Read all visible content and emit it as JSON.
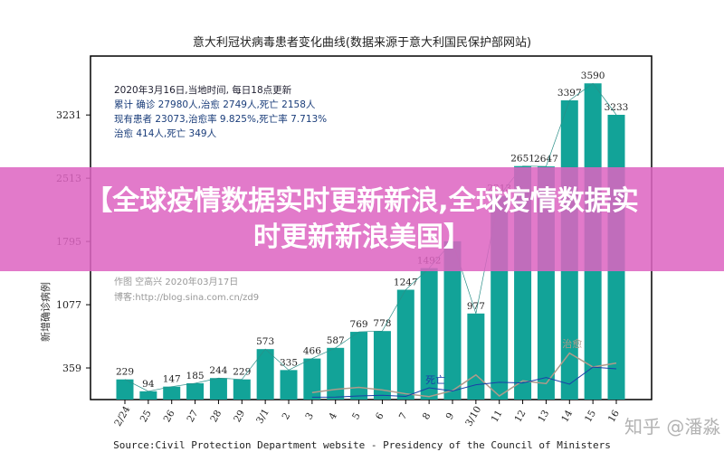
{
  "chart_data": {
    "type": "bar",
    "title": "意大利冠状病毒患者变化曲线(数据来源于意大利国民保护部网站)",
    "ylabel": "新增确诊病例",
    "xlabel": "",
    "yticks": [
      359,
      1077,
      1795,
      2513,
      3231
    ],
    "ylim": [
      0,
      3900
    ],
    "categories": [
      "2/24",
      "25",
      "26",
      "27",
      "28",
      "29",
      "3/1",
      "2",
      "3",
      "4",
      "5",
      "6",
      "7",
      "8",
      "9",
      "3/10",
      "11",
      "12",
      "13",
      "14",
      "15",
      "16"
    ],
    "values": [
      229,
      94,
      147,
      185,
      244,
      229,
      573,
      335,
      466,
      587,
      769,
      778,
      1247,
      1492,
      1797,
      977,
      2313,
      2651,
      2647,
      3397,
      3590,
      3233
    ],
    "value_labels": [
      "229",
      "94",
      "147",
      "185",
      "244",
      "229",
      "573",
      "335",
      "466",
      "587",
      "769",
      "778",
      "1247",
      "1492",
      "",
      "977",
      "2313",
      "2651",
      "2647",
      "3397",
      "3590",
      "3233"
    ],
    "bar_color": "#12a398",
    "lines": [
      {
        "name": "治愈",
        "color": "#b09a8a",
        "start": "3",
        "values": [
          80,
          116,
          138,
          109,
          66,
          33,
          102,
          280,
          41,
          213,
          181,
          527,
          369,
          414
        ]
      },
      {
        "name": "死亡",
        "color": "#1a3fa8",
        "start": "3",
        "values": [
          27,
          28,
          41,
          49,
          36,
          133,
          97,
          168,
          196,
          189,
          250,
          175,
          368,
          349
        ]
      }
    ],
    "grid": false,
    "legend": "none"
  },
  "info": {
    "line1": "2020年3月16日,当地时间, 每日18点更新",
    "line2": "累计 确诊 27980人,治愈 2749人,死亡 2158人",
    "line3": "现有患者 23073,治愈率 9.825%,死亡率 7.713%",
    "line4": "治愈 414人,死亡 349人"
  },
  "credit": {
    "line1": "作图 空高兴 2020年03月17日",
    "line2": "博客:http://blog.sina.com.cn/zd9"
  },
  "source": "Source:Civil Protection Department website - Presidency of the Council of Ministers",
  "banner": {
    "line1": "【全球疫情数据实时更新新浪,全球疫情数据实",
    "line2": "时更新新浪美国】"
  },
  "watermark": "知乎 @潘淼"
}
